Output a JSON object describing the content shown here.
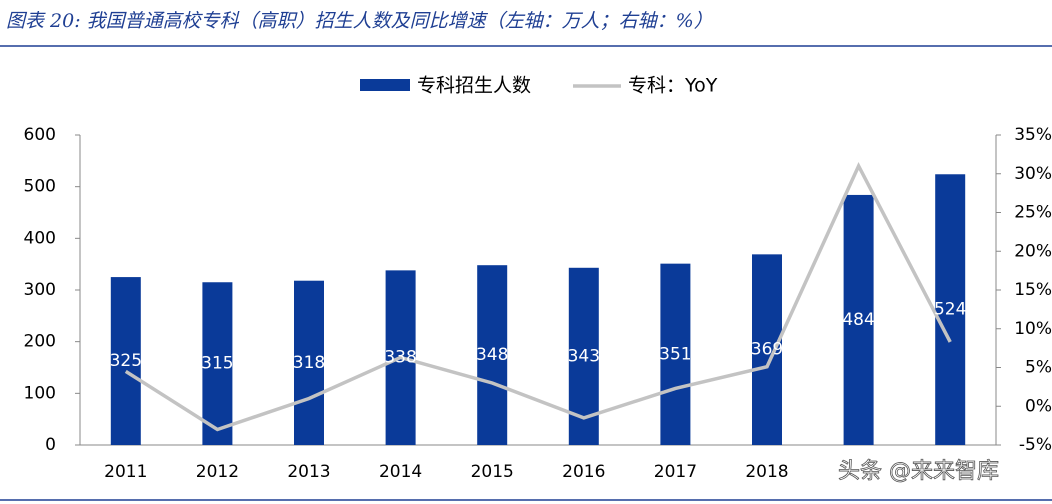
{
  "chart_data": {
    "type": "bar-line",
    "title": "图表 20: 我国普通高校专科（高职）招生人数及同比增速（左轴：万人；右轴：%）",
    "watermark": "头条 @来来智库",
    "categories": [
      "2011",
      "2012",
      "2013",
      "2014",
      "2015",
      "2016",
      "2017",
      "2018",
      null,
      null
    ],
    "series": [
      {
        "name": "专科招生人数",
        "color": "#0a3a99",
        "axis": "y",
        "values": [
          325,
          315,
          318,
          338,
          348,
          343,
          351,
          369,
          484,
          524
        ]
      },
      {
        "name": "专科：YoY",
        "color": "#c3c3c3",
        "axis": "y2",
        "values": [
          4.5,
          -3,
          1,
          6.3,
          3,
          -1.5,
          2.3,
          5.1,
          31,
          8.3
        ]
      }
    ],
    "ylim": [
      0,
      600
    ],
    "yticks": [
      0,
      100,
      200,
      300,
      400,
      500,
      600
    ],
    "y2lim": [
      -5,
      35
    ],
    "y2ticks": [
      {
        "value": -5,
        "label": "-5%"
      },
      {
        "value": 0,
        "label": "0%"
      },
      {
        "value": 5,
        "label": "5%"
      },
      {
        "value": 10,
        "label": "10%"
      },
      {
        "value": 15,
        "label": "15%"
      },
      {
        "value": 20,
        "label": "20%"
      },
      {
        "value": 25,
        "label": "25%"
      },
      {
        "value": 30,
        "label": "30%"
      },
      {
        "value": 35,
        "label": "35%"
      }
    ]
  }
}
